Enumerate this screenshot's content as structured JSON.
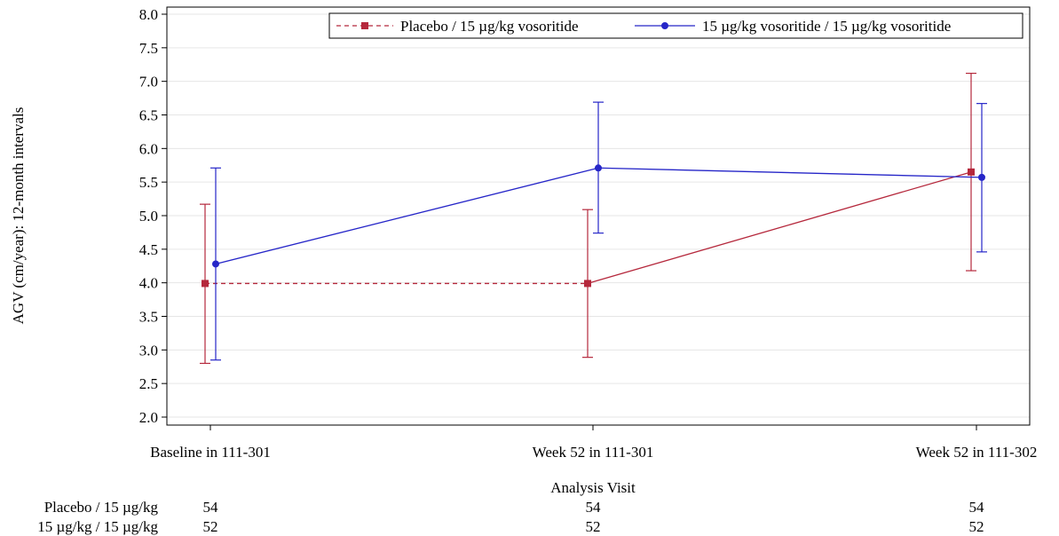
{
  "chart_data": {
    "type": "line",
    "title": "",
    "xlabel": "Analysis Visit",
    "ylabel": "AGV (cm/year): 12-month intervals",
    "categories": [
      "Baseline in 111-301",
      "Week 52 in 111-301",
      "Week 52 in 111-302"
    ],
    "ylim": [
      2.0,
      8.0
    ],
    "yticks": [
      "2.0",
      "2.5",
      "3.0",
      "3.5",
      "4.0",
      "4.5",
      "5.0",
      "5.5",
      "6.0",
      "6.5",
      "7.0",
      "7.5",
      "8.0"
    ],
    "grid": true,
    "legend_position": "top-right",
    "series": [
      {
        "name": "Placebo / 15 µg/kg vosoritide",
        "color": "#b5283c",
        "marker": "square",
        "values": [
          3.99,
          3.99,
          5.65
        ],
        "lower": [
          2.8,
          2.89,
          4.18
        ],
        "upper": [
          5.17,
          5.09,
          7.12
        ],
        "segment_styles": [
          "dashed",
          "solid"
        ]
      },
      {
        "name": "15 µg/kg vosoritide / 15 µg/kg vosoritide",
        "color": "#2626c8",
        "marker": "circle",
        "values": [
          4.28,
          5.71,
          5.57
        ],
        "lower": [
          2.85,
          4.74,
          4.46
        ],
        "upper": [
          5.71,
          6.69,
          6.67
        ],
        "segment_styles": [
          "solid",
          "solid"
        ]
      }
    ],
    "at_risk_table": {
      "rows": [
        {
          "label": "Placebo / 15 µg/kg",
          "values": [
            "54",
            "54",
            "54"
          ]
        },
        {
          "label": "15 µg/kg / 15 µg/kg",
          "values": [
            "52",
            "52",
            "52"
          ]
        }
      ]
    }
  }
}
